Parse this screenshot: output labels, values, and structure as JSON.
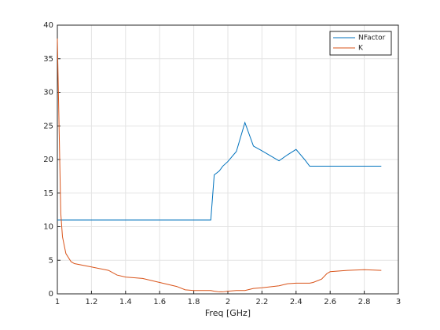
{
  "chart_data": {
    "type": "line",
    "xlabel": "Freq [GHz]",
    "x": [
      1.0,
      1.01,
      1.02,
      1.03,
      1.05,
      1.08,
      1.1,
      1.2,
      1.3,
      1.35,
      1.4,
      1.5,
      1.6,
      1.7,
      1.75,
      1.8,
      1.9,
      1.92,
      1.95,
      1.97,
      2.0,
      2.05,
      2.1,
      2.15,
      2.2,
      2.3,
      2.35,
      2.4,
      2.45,
      2.48,
      2.5,
      2.55,
      2.58,
      2.6,
      2.7,
      2.8,
      2.9
    ],
    "series": [
      {
        "name": "NFactor",
        "color": "#0072bd",
        "values": [
          11,
          11,
          11,
          11,
          11,
          11,
          11,
          11,
          11,
          11,
          11,
          11,
          11,
          11,
          11,
          11,
          11,
          17.7,
          18.3,
          19,
          19.7,
          21.2,
          25.5,
          22,
          21.3,
          19.8,
          20.7,
          21.5,
          20,
          19,
          19,
          19,
          19,
          19,
          19,
          19,
          19
        ]
      },
      {
        "name": "K",
        "color": "#d95319",
        "values": [
          38,
          25,
          12,
          8.5,
          6,
          4.8,
          4.5,
          4,
          3.5,
          2.8,
          2.5,
          2.3,
          1.7,
          1.1,
          0.6,
          0.5,
          0.5,
          0.4,
          0.3,
          0.3,
          0.4,
          0.5,
          0.5,
          0.8,
          0.9,
          1.2,
          1.5,
          1.6,
          1.6,
          1.6,
          1.7,
          2.2,
          3,
          3.3,
          3.5,
          3.6,
          3.5
        ]
      }
    ],
    "xlim": [
      1,
      3
    ],
    "xticks": [
      1,
      1.2,
      1.4,
      1.6,
      1.8,
      2,
      2.2,
      2.4,
      2.6,
      2.8,
      3
    ],
    "ylim": [
      0,
      40
    ],
    "yticks": [
      0,
      5,
      10,
      15,
      20,
      25,
      30,
      35,
      40
    ],
    "grid": true,
    "legend": "top-right"
  }
}
